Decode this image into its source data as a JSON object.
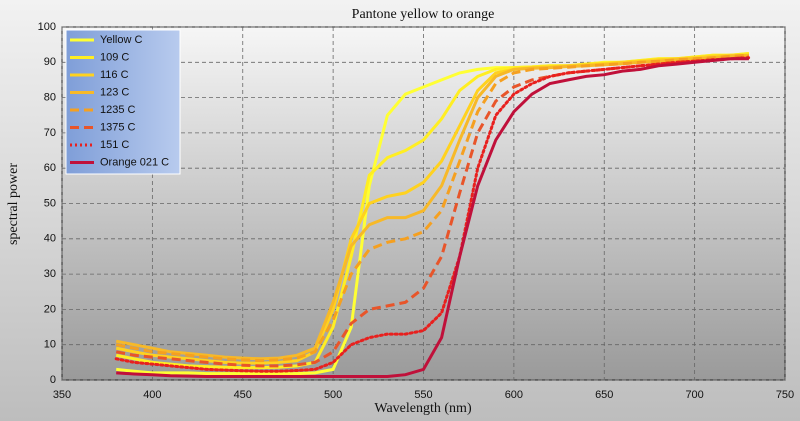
{
  "chart_data": {
    "type": "line",
    "title": "Pantone yellow to orange",
    "x_label": "Wavelength (nm)",
    "y_label": "spectral power",
    "xlim": [
      350,
      750
    ],
    "xticks": [
      350,
      400,
      450,
      500,
      550,
      600,
      650,
      700,
      750
    ],
    "ylim": [
      0,
      100
    ],
    "yticks": [
      0,
      10,
      20,
      30,
      40,
      50,
      60,
      70,
      80,
      90,
      100
    ],
    "grid": true,
    "legend": "upper left",
    "x": [
      380,
      390,
      400,
      410,
      420,
      430,
      440,
      450,
      460,
      470,
      480,
      490,
      500,
      510,
      520,
      530,
      540,
      550,
      560,
      570,
      580,
      590,
      600,
      610,
      620,
      630,
      640,
      650,
      660,
      670,
      680,
      690,
      700,
      710,
      720,
      730
    ],
    "series": [
      {
        "name": "Yellow C",
        "color": "#ffff33",
        "dash": "solid",
        "values": [
          3,
          2.5,
          2,
          2,
          2,
          1.8,
          1.8,
          1.8,
          1.8,
          1.8,
          1.8,
          2,
          3,
          15,
          55,
          75,
          81,
          83,
          85,
          87,
          88,
          88.5,
          88.5,
          88.7,
          89,
          89,
          89.5,
          90,
          90,
          90.5,
          91,
          91,
          91.5,
          92,
          92,
          92.5
        ]
      },
      {
        "name": "109 C",
        "color": "#ffee22",
        "dash": "solid",
        "values": [
          7,
          6,
          5,
          4.5,
          4,
          3.8,
          3.6,
          3.5,
          3.5,
          3.6,
          4,
          5,
          15,
          35,
          58,
          63,
          65,
          68,
          74,
          82,
          86,
          88,
          88.5,
          88.7,
          89,
          89,
          89.5,
          89.8,
          90,
          90.5,
          91,
          91,
          91.5,
          92,
          92,
          92.5
        ]
      },
      {
        "name": "116 C",
        "color": "#ffd21f",
        "dash": "solid",
        "values": [
          9,
          8,
          7,
          6.5,
          6,
          5.5,
          5,
          4.8,
          4.8,
          5,
          5.5,
          8,
          20,
          40,
          50,
          52,
          53,
          56,
          62,
          72,
          82,
          87,
          88,
          88.5,
          88.7,
          89,
          89.3,
          89.6,
          90,
          90.3,
          90.7,
          91,
          91.3,
          91.7,
          92,
          92
        ]
      },
      {
        "name": "123 C",
        "color": "#f7b928",
        "dash": "solid",
        "values": [
          11,
          10,
          9,
          8,
          7.5,
          7,
          6.5,
          6.2,
          6,
          6.2,
          7,
          9,
          22,
          38,
          44,
          46,
          46,
          48,
          55,
          68,
          80,
          86,
          88,
          88.3,
          88.5,
          88.8,
          89,
          89.3,
          89.6,
          90,
          90.3,
          90.7,
          91,
          91.3,
          91.7,
          92
        ]
      },
      {
        "name": "1235 C",
        "color": "#f5a020",
        "dash": "dashed",
        "values": [
          10,
          9,
          8,
          7.5,
          7,
          6.5,
          6,
          5.7,
          5.5,
          5.7,
          6.2,
          8,
          17,
          30,
          37,
          39,
          40,
          42,
          48,
          62,
          76,
          84,
          87,
          88,
          88.3,
          88.6,
          89,
          89.3,
          89.6,
          90,
          90.3,
          90.7,
          91,
          91.3,
          91.7,
          92
        ]
      },
      {
        "name": "1375 C",
        "color": "#e8552a",
        "dash": "dashed",
        "values": [
          8,
          7,
          6.5,
          6,
          5.5,
          5,
          4.5,
          4.2,
          4,
          4,
          4.3,
          5,
          8,
          16,
          20,
          21,
          22,
          26,
          35,
          53,
          70,
          79,
          83,
          85,
          86,
          87,
          87.5,
          88,
          88.5,
          89,
          89.5,
          90,
          90.3,
          90.7,
          91,
          91.5
        ]
      },
      {
        "name": "151 C",
        "color": "#e8201e",
        "dash": "dotted",
        "values": [
          6,
          5,
          4.5,
          4,
          3.5,
          3,
          2.8,
          2.6,
          2.5,
          2.5,
          2.7,
          3,
          5,
          10,
          12,
          13,
          13,
          14,
          19,
          35,
          60,
          75,
          81,
          84,
          86,
          87,
          87.5,
          88,
          88.5,
          89,
          89.5,
          90,
          90.3,
          90.7,
          91,
          91.3
        ]
      },
      {
        "name": "Orange 021 C",
        "color": "#c0103a",
        "dash": "solid",
        "values": [
          2,
          1.7,
          1.5,
          1.2,
          1.1,
          1,
          1,
          1,
          1,
          1,
          1,
          1,
          1,
          1,
          1,
          1,
          1.5,
          3,
          12,
          35,
          55,
          68,
          76,
          81,
          84,
          85,
          86,
          86.5,
          87.5,
          88,
          89,
          89.5,
          90,
          90.5,
          91,
          91
        ]
      }
    ]
  }
}
